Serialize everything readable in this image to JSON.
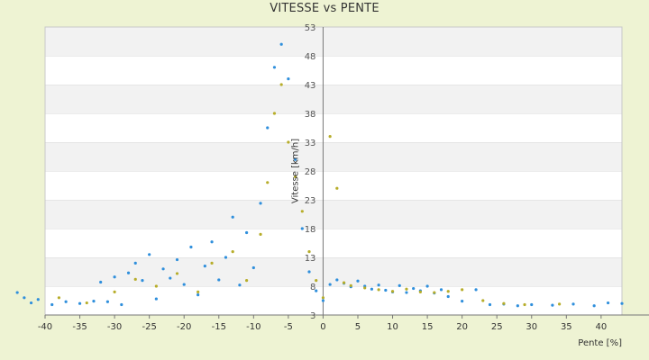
{
  "chart_data": {
    "type": "scatter",
    "title": "VITESSE vs PENTE",
    "xlabel": "Pente [%]",
    "ylabel": "Vitesse [km/h]",
    "xlim": [
      -40,
      43
    ],
    "ylim": [
      3,
      53
    ],
    "x_ticks": [
      -40,
      -35,
      -30,
      -25,
      -20,
      -15,
      -10,
      -5,
      0,
      5,
      10,
      15,
      20,
      25,
      30,
      35,
      40
    ],
    "y_ticks": [
      3,
      8,
      13,
      18,
      23,
      28,
      33,
      38,
      43,
      48,
      53
    ],
    "grid": "alternating horizontal bands",
    "legend": "none",
    "series": [
      {
        "color": "#2f8fdc",
        "points": [
          [
            -44,
            6.9
          ],
          [
            -43,
            6.0
          ],
          [
            -42,
            5.1
          ],
          [
            -41,
            5.7
          ],
          [
            -39,
            4.8
          ],
          [
            -37,
            5.3
          ],
          [
            -35,
            5.0
          ],
          [
            -33,
            5.4
          ],
          [
            -32,
            8.7
          ],
          [
            -31,
            5.3
          ],
          [
            -30,
            9.6
          ],
          [
            -29,
            4.8
          ],
          [
            -28,
            10.3
          ],
          [
            -27,
            12.0
          ],
          [
            -26,
            9.0
          ],
          [
            -25,
            13.5
          ],
          [
            -24,
            5.8
          ],
          [
            -23,
            11.0
          ],
          [
            -22,
            9.4
          ],
          [
            -21,
            12.6
          ],
          [
            -20,
            8.3
          ],
          [
            -19,
            14.8
          ],
          [
            -18,
            6.5
          ],
          [
            -17,
            11.5
          ],
          [
            -16,
            15.7
          ],
          [
            -15,
            9.1
          ],
          [
            -14,
            13.0
          ],
          [
            -13,
            20.0
          ],
          [
            -12,
            8.2
          ],
          [
            -11,
            17.3
          ],
          [
            -10,
            11.2
          ],
          [
            -9,
            22.4
          ],
          [
            -8,
            35.5
          ],
          [
            -7,
            46.0
          ],
          [
            -6,
            50.0
          ],
          [
            -5,
            44.0
          ],
          [
            -4,
            30.0
          ],
          [
            -3,
            18.0
          ],
          [
            -2,
            10.5
          ],
          [
            -1,
            7.2
          ],
          [
            0,
            5.5
          ],
          [
            1,
            8.3
          ],
          [
            2,
            9.1
          ],
          [
            3,
            8.5
          ],
          [
            4,
            7.9
          ],
          [
            5,
            8.9
          ],
          [
            6,
            8.0
          ],
          [
            7,
            7.5
          ],
          [
            8,
            8.2
          ],
          [
            9,
            7.3
          ],
          [
            10,
            7.0
          ],
          [
            11,
            8.1
          ],
          [
            12,
            6.9
          ],
          [
            13,
            7.6
          ],
          [
            14,
            7.2
          ],
          [
            15,
            8.0
          ],
          [
            16,
            6.8
          ],
          [
            17,
            7.4
          ],
          [
            18,
            6.2
          ],
          [
            20,
            5.4
          ],
          [
            22,
            7.4
          ],
          [
            24,
            4.8
          ],
          [
            26,
            4.9
          ],
          [
            28,
            4.6
          ],
          [
            30,
            4.8
          ],
          [
            33,
            4.7
          ],
          [
            36,
            4.9
          ],
          [
            39,
            4.6
          ],
          [
            41,
            5.1
          ],
          [
            43,
            5.0
          ]
        ]
      },
      {
        "color": "#b7ad2a",
        "points": [
          [
            -38,
            6.0
          ],
          [
            -34,
            5.1
          ],
          [
            -30,
            7.0
          ],
          [
            -27,
            9.2
          ],
          [
            -24,
            8.0
          ],
          [
            -21,
            10.2
          ],
          [
            -18,
            7.0
          ],
          [
            -16,
            12.0
          ],
          [
            -13,
            14.0
          ],
          [
            -11,
            9.0
          ],
          [
            -9,
            17.0
          ],
          [
            -8,
            26.0
          ],
          [
            -7,
            38.0
          ],
          [
            -6,
            43.0
          ],
          [
            -5,
            33.0
          ],
          [
            -4,
            27.0
          ],
          [
            -3,
            21.0
          ],
          [
            -2,
            14.0
          ],
          [
            -1,
            9.0
          ],
          [
            0,
            6.0
          ],
          [
            1,
            34.0
          ],
          [
            2,
            25.0
          ],
          [
            3,
            8.6
          ],
          [
            4,
            8.1
          ],
          [
            6,
            7.7
          ],
          [
            8,
            7.4
          ],
          [
            10,
            7.1
          ],
          [
            12,
            7.5
          ],
          [
            14,
            7.0
          ],
          [
            16,
            6.9
          ],
          [
            18,
            7.1
          ],
          [
            20,
            7.4
          ],
          [
            23,
            5.5
          ],
          [
            26,
            5.0
          ],
          [
            29,
            4.8
          ],
          [
            34,
            4.9
          ]
        ]
      }
    ]
  }
}
